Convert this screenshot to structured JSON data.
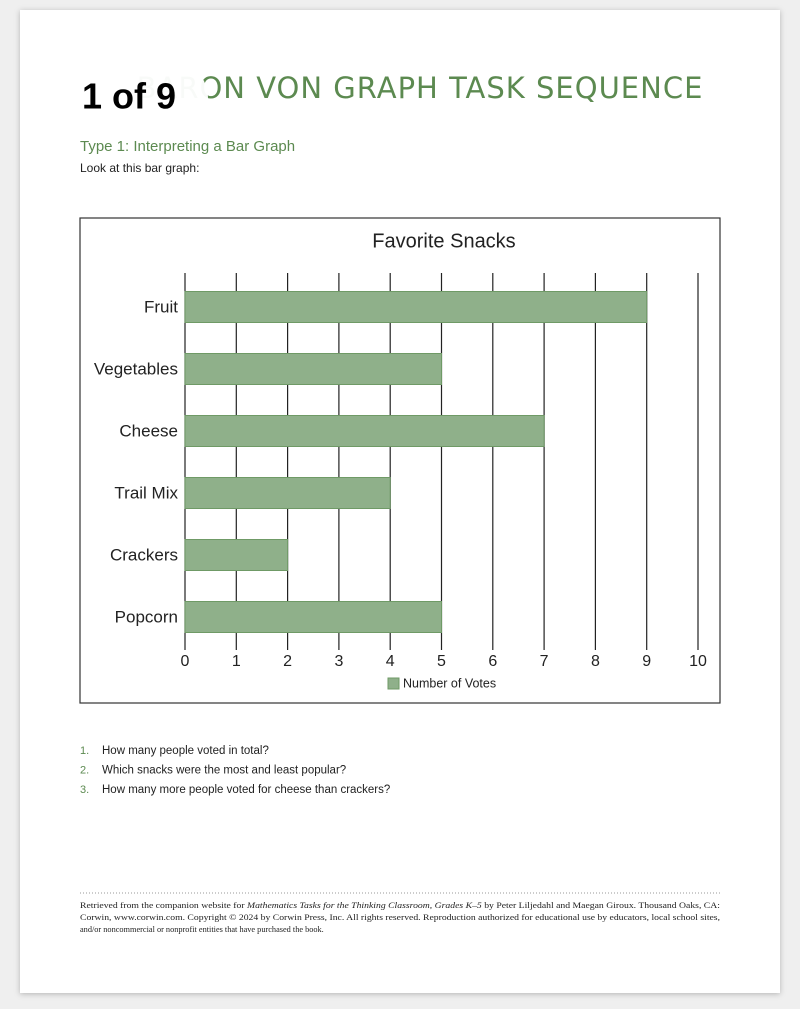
{
  "badge": "1 of 9",
  "header": {
    "title": "BARON VON GRAPH TASK SEQUENCE",
    "subtitle": "Type 1: Interpreting a Bar Graph",
    "instruction": "Look at this bar graph:"
  },
  "chart_data": {
    "type": "barh",
    "title": "Favorite Snacks",
    "categories": [
      "Fruit",
      "Vegetables",
      "Cheese",
      "Trail Mix",
      "Crackers",
      "Popcorn"
    ],
    "series": [
      {
        "name": "Number of Votes",
        "color": "#8fb08a",
        "values": [
          9,
          5,
          7,
          4,
          2,
          5
        ]
      }
    ],
    "xlim": [
      0,
      10
    ],
    "xticks": [
      0,
      1,
      2,
      3,
      4,
      5,
      6,
      7,
      8,
      9,
      10
    ],
    "grid": true,
    "legend": "bottom"
  },
  "questions": [
    {
      "number": "1.",
      "text": "How many people voted in total?"
    },
    {
      "number": "2.",
      "text": "Which snacks were the most and least popular?"
    },
    {
      "number": "3.",
      "text": "How many more people voted for cheese than crackers?"
    }
  ],
  "footer": {
    "line1_start": "Retrieved from the companion website for ",
    "book_title": "Mathematics Tasks for the Thinking Classroom, Grades K–5",
    "line1_end": " by Peter Liljedahl and Maegan Giroux. Thousand Oaks, CA:",
    "line2": "Corwin, www.corwin.com. Copyright © 2024 by Corwin Press, Inc. All rights reserved. Reproduction authorized for educational use by educators, local school sites,",
    "line3": "and/or noncommercial or nonprofit entities that have purchased the book."
  }
}
